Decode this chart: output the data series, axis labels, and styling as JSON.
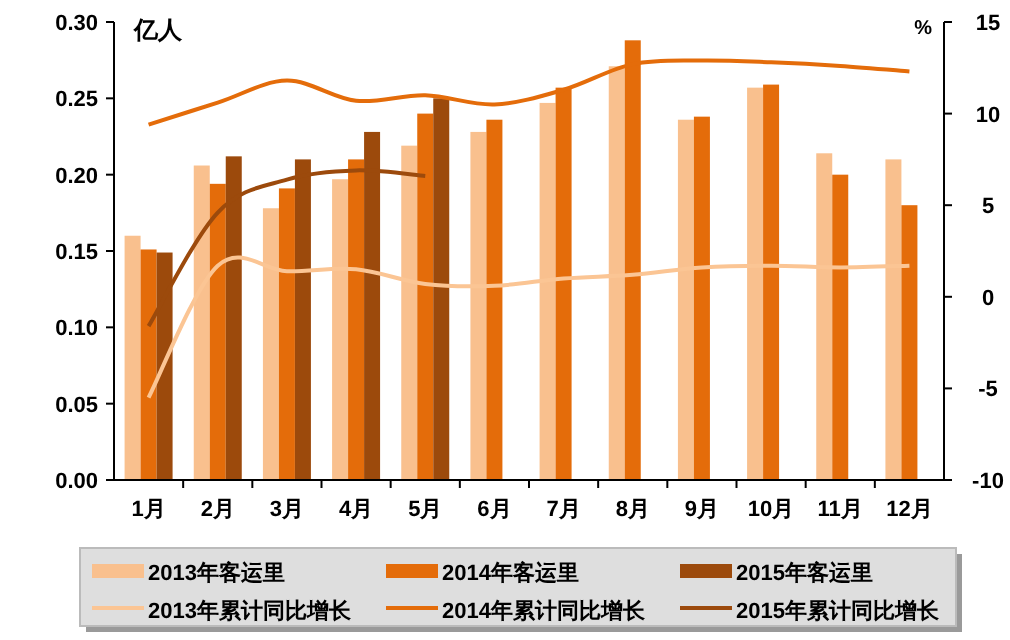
{
  "chart_data": {
    "type": "bar",
    "ylabel": "亿人",
    "y2label": "%",
    "categories": [
      "1月",
      "2月",
      "3月",
      "4月",
      "5月",
      "6月",
      "7月",
      "8月",
      "9月",
      "10月",
      "11月",
      "12月"
    ],
    "series": [
      {
        "name": "2013年客运里",
        "color": "#f9c08e",
        "values": [
          0.16,
          0.206,
          0.178,
          0.197,
          0.219,
          0.228,
          0.247,
          0.271,
          0.236,
          0.257,
          0.214,
          0.21
        ]
      },
      {
        "name": "2014年客运里",
        "color": "#e46c0a",
        "values": [
          0.151,
          0.194,
          0.191,
          0.21,
          0.24,
          0.236,
          0.257,
          0.288,
          0.238,
          0.259,
          0.2,
          0.18
        ]
      },
      {
        "name": "2015年客运里",
        "color": "#9c4a0c",
        "values": [
          0.149,
          0.212,
          0.21,
          0.228,
          0.25,
          null,
          null,
          null,
          null,
          null,
          null,
          null
        ]
      },
      {
        "name": "2013年累计同比增长",
        "type": "line",
        "axis": "y2",
        "color": "#fbc594",
        "values": [
          -5.5,
          1.7,
          1.4,
          1.5,
          0.7,
          0.6,
          1.0,
          1.2,
          1.6,
          1.7,
          1.6,
          1.7
        ]
      },
      {
        "name": "2014年累计同比增长",
        "type": "line",
        "axis": "y2",
        "color": "#e46c0a",
        "values": [
          9.4,
          10.6,
          11.8,
          10.7,
          11.0,
          10.5,
          11.3,
          12.7,
          12.9,
          12.8,
          12.6,
          12.3
        ]
      },
      {
        "name": "2015年累计同比增长",
        "type": "line",
        "axis": "y2",
        "color": "#9c4a0c",
        "values": [
          -1.6,
          4.6,
          6.4,
          6.9,
          6.6,
          null,
          null,
          null,
          null,
          null,
          null,
          null
        ]
      }
    ],
    "ylim": [
      0,
      0.3
    ],
    "yticks": [
      {
        "value": 0,
        "label": "0.00"
      },
      {
        "value": 0.05,
        "label": "0.05"
      },
      {
        "value": 0.1,
        "label": "0.10"
      },
      {
        "value": 0.15,
        "label": "0.15"
      },
      {
        "value": 0.2,
        "label": "0.20"
      },
      {
        "value": 0.25,
        "label": "0.25"
      },
      {
        "value": 0.3,
        "label": "0.30"
      }
    ],
    "y2lim": [
      -10,
      15
    ],
    "y2ticks": [
      -10,
      -5,
      0,
      5,
      10,
      15
    ],
    "legend": "bottom",
    "grid": false
  }
}
